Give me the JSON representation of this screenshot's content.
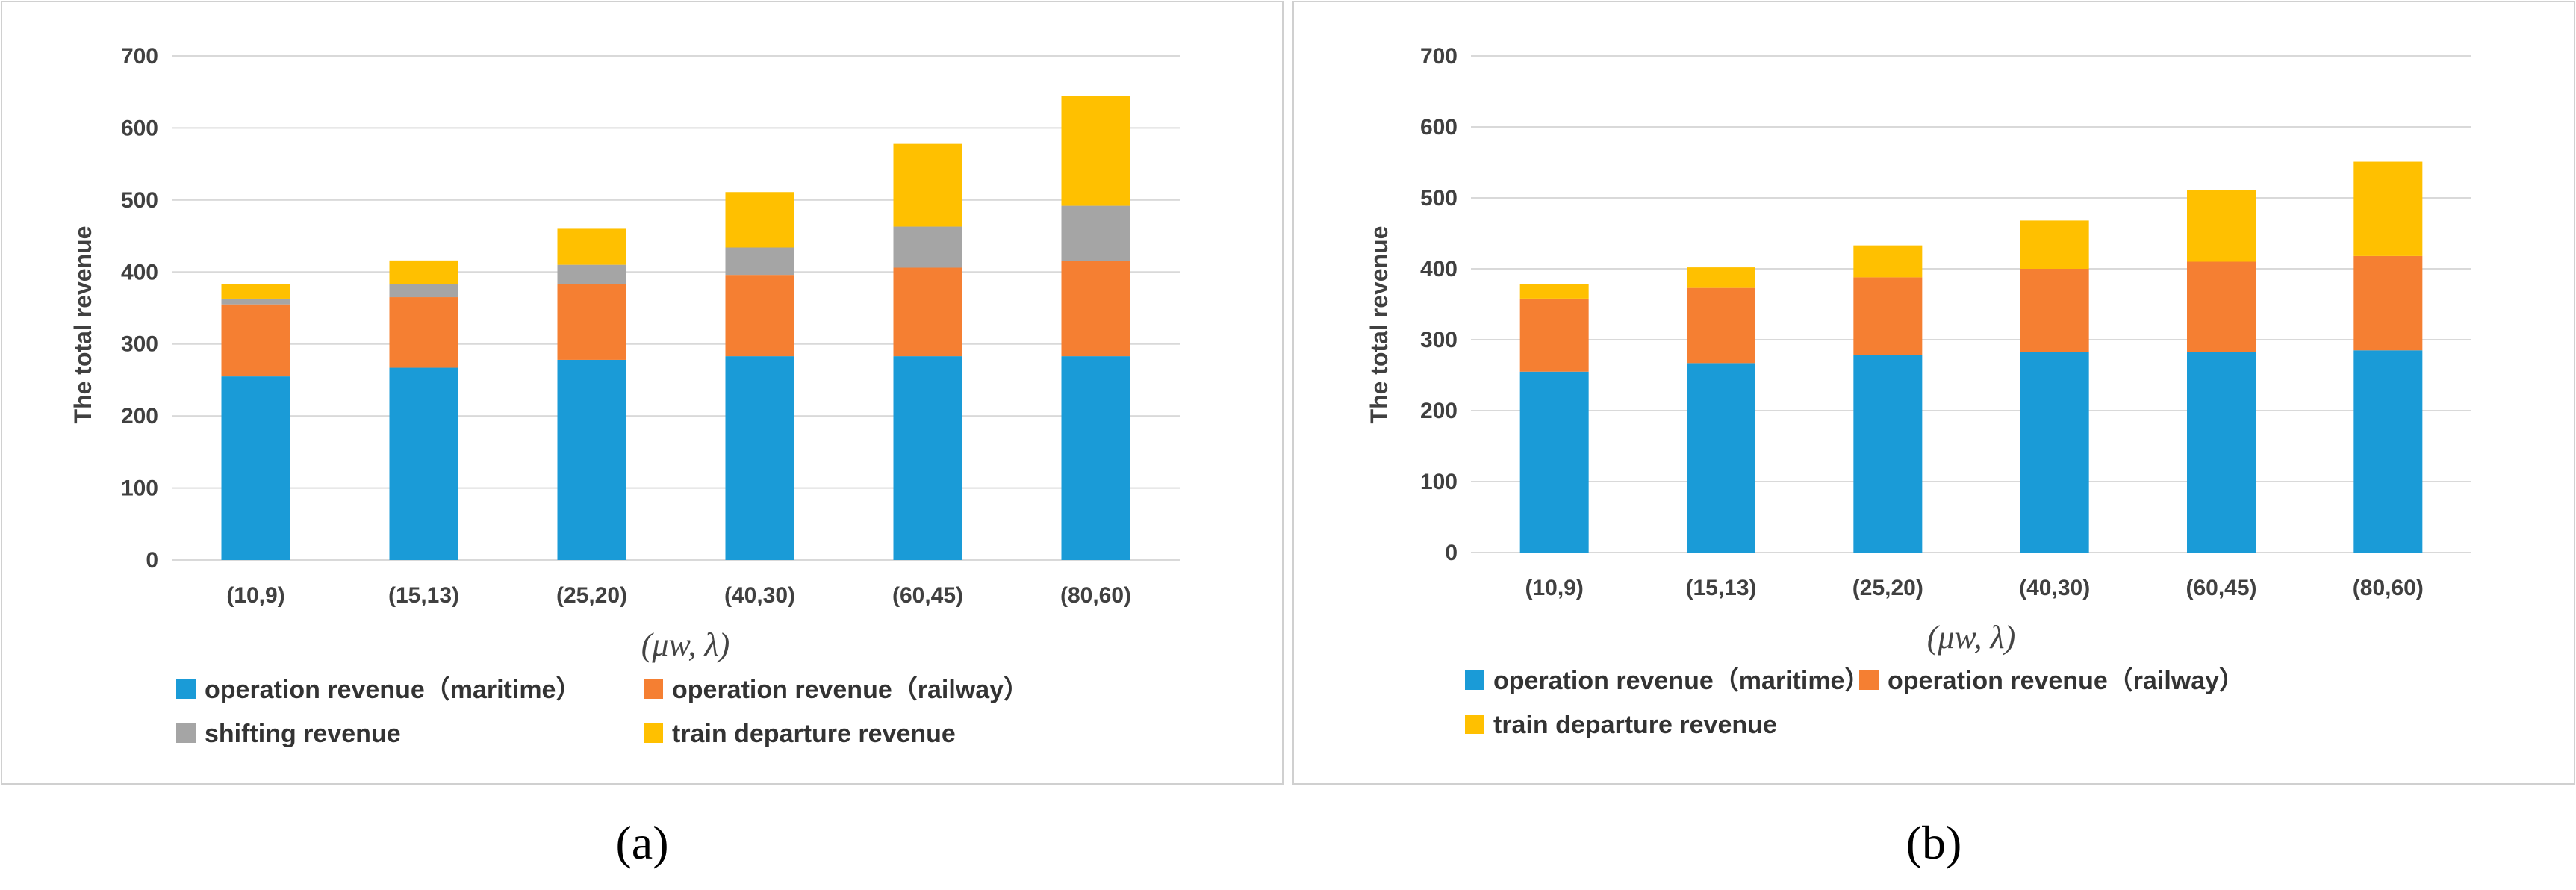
{
  "chart_data": [
    {
      "type": "bar",
      "stacked": true,
      "caption": "(a)",
      "categories": [
        "(10,9)",
        "(15,13)",
        "(25,20)",
        "(40,30)",
        "(60,45)",
        "(80,60)"
      ],
      "ylabel": "The total revenue",
      "xlabel": "(μw, λ)",
      "ylim": [
        0,
        700
      ],
      "yticks": [
        0,
        100,
        200,
        300,
        400,
        500,
        600,
        700
      ],
      "grid": true,
      "legend_position": "bottom",
      "series": [
        {
          "name": "operation revenue（maritime）",
          "color": "#1a9bd7",
          "values": [
            255,
            267,
            278,
            283,
            283,
            283
          ]
        },
        {
          "name": "operation revenue（railway）",
          "color": "#f57f32",
          "values": [
            100,
            98,
            105,
            113,
            123,
            132
          ]
        },
        {
          "name": "shifting revenue",
          "color": "#a5a5a5",
          "values": [
            8,
            18,
            27,
            38,
            57,
            77
          ]
        },
        {
          "name": "train departure revenue",
          "color": "#ffc000",
          "values": [
            20,
            33,
            50,
            77,
            115,
            153
          ]
        }
      ]
    },
    {
      "type": "bar",
      "stacked": true,
      "caption": "(b)",
      "categories": [
        "(10,9)",
        "(15,13)",
        "(25,20)",
        "(40,30)",
        "(60,45)",
        "(80,60)"
      ],
      "ylabel": "The total revenue",
      "xlabel": "(μw, λ)",
      "ylim": [
        0,
        700
      ],
      "yticks": [
        0,
        100,
        200,
        300,
        400,
        500,
        600,
        700
      ],
      "grid": true,
      "legend_position": "bottom",
      "series": [
        {
          "name": "operation revenue（maritime）",
          "color": "#1a9bd7",
          "values": [
            255,
            267,
            278,
            283,
            283,
            285
          ]
        },
        {
          "name": "operation revenue（railway）",
          "color": "#f57f32",
          "values": [
            103,
            106,
            110,
            117,
            127,
            133
          ]
        },
        {
          "name": "train departure revenue",
          "color": "#ffc000",
          "values": [
            20,
            29,
            45,
            68,
            101,
            133
          ]
        }
      ]
    }
  ]
}
